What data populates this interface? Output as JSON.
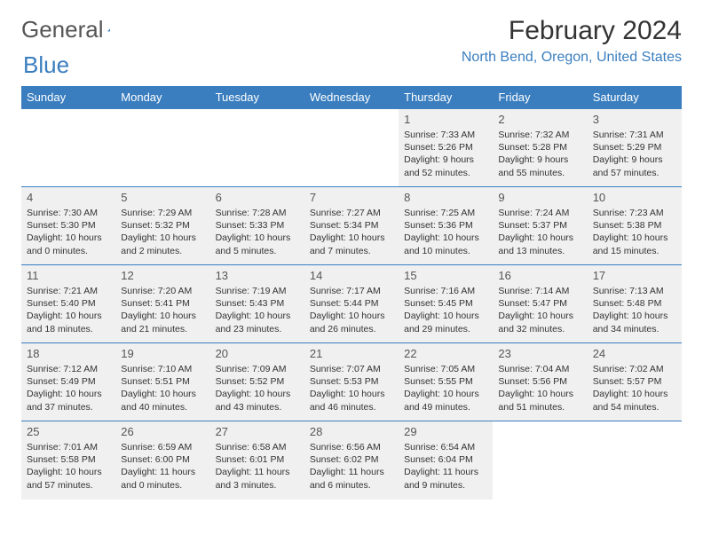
{
  "brand": {
    "word1": "General",
    "word2": "Blue"
  },
  "title": "February 2024",
  "location": "North Bend, Oregon, United States",
  "colors": {
    "header_bg": "#3a7ebf",
    "header_text": "#ffffff",
    "brand_gray": "#555555",
    "brand_blue": "#3a7ebf",
    "shaded_bg": "#f0f0f0",
    "border": "#3a7ebf",
    "body_text": "#333333"
  },
  "fonts": {
    "title_size": 30,
    "location_size": 16,
    "dayhead_size": 13,
    "daynum_size": 13,
    "info_size": 10.5
  },
  "day_headers": [
    "Sunday",
    "Monday",
    "Tuesday",
    "Wednesday",
    "Thursday",
    "Friday",
    "Saturday"
  ],
  "weeks": [
    [
      {
        "empty": true
      },
      {
        "empty": true
      },
      {
        "empty": true
      },
      {
        "empty": true
      },
      {
        "shaded": true,
        "num": "1",
        "sunrise": "Sunrise: 7:33 AM",
        "sunset": "Sunset: 5:26 PM",
        "day1": "Daylight: 9 hours",
        "day2": "and 52 minutes."
      },
      {
        "shaded": true,
        "num": "2",
        "sunrise": "Sunrise: 7:32 AM",
        "sunset": "Sunset: 5:28 PM",
        "day1": "Daylight: 9 hours",
        "day2": "and 55 minutes."
      },
      {
        "shaded": true,
        "num": "3",
        "sunrise": "Sunrise: 7:31 AM",
        "sunset": "Sunset: 5:29 PM",
        "day1": "Daylight: 9 hours",
        "day2": "and 57 minutes."
      }
    ],
    [
      {
        "shaded": true,
        "num": "4",
        "sunrise": "Sunrise: 7:30 AM",
        "sunset": "Sunset: 5:30 PM",
        "day1": "Daylight: 10 hours",
        "day2": "and 0 minutes."
      },
      {
        "shaded": true,
        "num": "5",
        "sunrise": "Sunrise: 7:29 AM",
        "sunset": "Sunset: 5:32 PM",
        "day1": "Daylight: 10 hours",
        "day2": "and 2 minutes."
      },
      {
        "shaded": true,
        "num": "6",
        "sunrise": "Sunrise: 7:28 AM",
        "sunset": "Sunset: 5:33 PM",
        "day1": "Daylight: 10 hours",
        "day2": "and 5 minutes."
      },
      {
        "shaded": true,
        "num": "7",
        "sunrise": "Sunrise: 7:27 AM",
        "sunset": "Sunset: 5:34 PM",
        "day1": "Daylight: 10 hours",
        "day2": "and 7 minutes."
      },
      {
        "shaded": true,
        "num": "8",
        "sunrise": "Sunrise: 7:25 AM",
        "sunset": "Sunset: 5:36 PM",
        "day1": "Daylight: 10 hours",
        "day2": "and 10 minutes."
      },
      {
        "shaded": true,
        "num": "9",
        "sunrise": "Sunrise: 7:24 AM",
        "sunset": "Sunset: 5:37 PM",
        "day1": "Daylight: 10 hours",
        "day2": "and 13 minutes."
      },
      {
        "shaded": true,
        "num": "10",
        "sunrise": "Sunrise: 7:23 AM",
        "sunset": "Sunset: 5:38 PM",
        "day1": "Daylight: 10 hours",
        "day2": "and 15 minutes."
      }
    ],
    [
      {
        "shaded": true,
        "num": "11",
        "sunrise": "Sunrise: 7:21 AM",
        "sunset": "Sunset: 5:40 PM",
        "day1": "Daylight: 10 hours",
        "day2": "and 18 minutes."
      },
      {
        "shaded": true,
        "num": "12",
        "sunrise": "Sunrise: 7:20 AM",
        "sunset": "Sunset: 5:41 PM",
        "day1": "Daylight: 10 hours",
        "day2": "and 21 minutes."
      },
      {
        "shaded": true,
        "num": "13",
        "sunrise": "Sunrise: 7:19 AM",
        "sunset": "Sunset: 5:43 PM",
        "day1": "Daylight: 10 hours",
        "day2": "and 23 minutes."
      },
      {
        "shaded": true,
        "num": "14",
        "sunrise": "Sunrise: 7:17 AM",
        "sunset": "Sunset: 5:44 PM",
        "day1": "Daylight: 10 hours",
        "day2": "and 26 minutes."
      },
      {
        "shaded": true,
        "num": "15",
        "sunrise": "Sunrise: 7:16 AM",
        "sunset": "Sunset: 5:45 PM",
        "day1": "Daylight: 10 hours",
        "day2": "and 29 minutes."
      },
      {
        "shaded": true,
        "num": "16",
        "sunrise": "Sunrise: 7:14 AM",
        "sunset": "Sunset: 5:47 PM",
        "day1": "Daylight: 10 hours",
        "day2": "and 32 minutes."
      },
      {
        "shaded": true,
        "num": "17",
        "sunrise": "Sunrise: 7:13 AM",
        "sunset": "Sunset: 5:48 PM",
        "day1": "Daylight: 10 hours",
        "day2": "and 34 minutes."
      }
    ],
    [
      {
        "shaded": true,
        "num": "18",
        "sunrise": "Sunrise: 7:12 AM",
        "sunset": "Sunset: 5:49 PM",
        "day1": "Daylight: 10 hours",
        "day2": "and 37 minutes."
      },
      {
        "shaded": true,
        "num": "19",
        "sunrise": "Sunrise: 7:10 AM",
        "sunset": "Sunset: 5:51 PM",
        "day1": "Daylight: 10 hours",
        "day2": "and 40 minutes."
      },
      {
        "shaded": true,
        "num": "20",
        "sunrise": "Sunrise: 7:09 AM",
        "sunset": "Sunset: 5:52 PM",
        "day1": "Daylight: 10 hours",
        "day2": "and 43 minutes."
      },
      {
        "shaded": true,
        "num": "21",
        "sunrise": "Sunrise: 7:07 AM",
        "sunset": "Sunset: 5:53 PM",
        "day1": "Daylight: 10 hours",
        "day2": "and 46 minutes."
      },
      {
        "shaded": true,
        "num": "22",
        "sunrise": "Sunrise: 7:05 AM",
        "sunset": "Sunset: 5:55 PM",
        "day1": "Daylight: 10 hours",
        "day2": "and 49 minutes."
      },
      {
        "shaded": true,
        "num": "23",
        "sunrise": "Sunrise: 7:04 AM",
        "sunset": "Sunset: 5:56 PM",
        "day1": "Daylight: 10 hours",
        "day2": "and 51 minutes."
      },
      {
        "shaded": true,
        "num": "24",
        "sunrise": "Sunrise: 7:02 AM",
        "sunset": "Sunset: 5:57 PM",
        "day1": "Daylight: 10 hours",
        "day2": "and 54 minutes."
      }
    ],
    [
      {
        "shaded": true,
        "num": "25",
        "sunrise": "Sunrise: 7:01 AM",
        "sunset": "Sunset: 5:58 PM",
        "day1": "Daylight: 10 hours",
        "day2": "and 57 minutes."
      },
      {
        "shaded": true,
        "num": "26",
        "sunrise": "Sunrise: 6:59 AM",
        "sunset": "Sunset: 6:00 PM",
        "day1": "Daylight: 11 hours",
        "day2": "and 0 minutes."
      },
      {
        "shaded": true,
        "num": "27",
        "sunrise": "Sunrise: 6:58 AM",
        "sunset": "Sunset: 6:01 PM",
        "day1": "Daylight: 11 hours",
        "day2": "and 3 minutes."
      },
      {
        "shaded": true,
        "num": "28",
        "sunrise": "Sunrise: 6:56 AM",
        "sunset": "Sunset: 6:02 PM",
        "day1": "Daylight: 11 hours",
        "day2": "and 6 minutes."
      },
      {
        "shaded": true,
        "num": "29",
        "sunrise": "Sunrise: 6:54 AM",
        "sunset": "Sunset: 6:04 PM",
        "day1": "Daylight: 11 hours",
        "day2": "and 9 minutes."
      },
      {
        "empty": true
      },
      {
        "empty": true
      }
    ]
  ]
}
